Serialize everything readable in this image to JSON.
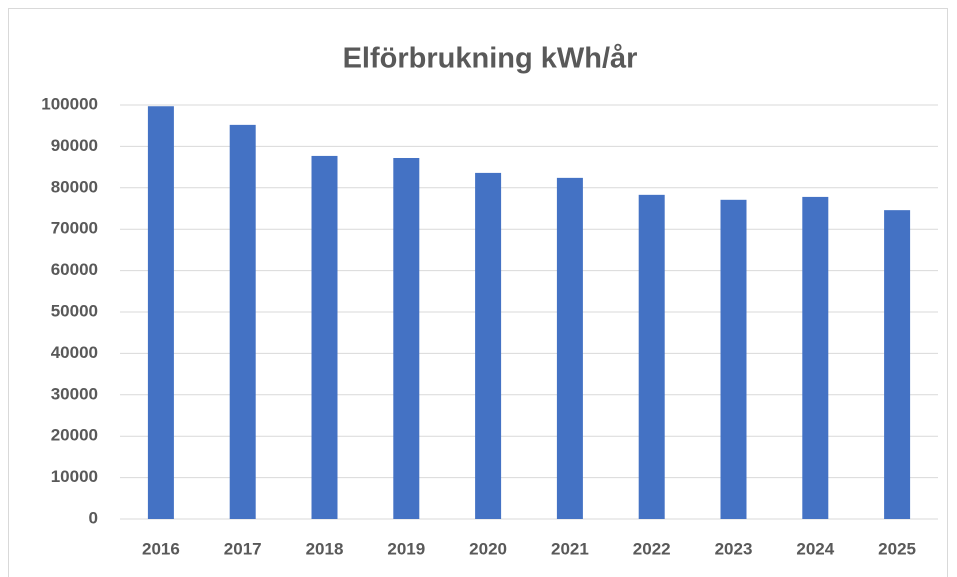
{
  "chart_data": {
    "type": "bar",
    "title": "Elförbrukning kWh/år",
    "categories": [
      "2016",
      "2017",
      "2018",
      "2019",
      "2020",
      "2021",
      "2022",
      "2023",
      "2024",
      "2025"
    ],
    "values": [
      99700,
      95200,
      87700,
      87200,
      83600,
      82400,
      78300,
      77100,
      77800,
      74600
    ],
    "color": "#4472c4",
    "ylim": [
      0,
      100000
    ],
    "yticks": [
      0,
      10000,
      20000,
      30000,
      40000,
      50000,
      60000,
      70000,
      80000,
      90000,
      100000
    ],
    "grid": true
  }
}
